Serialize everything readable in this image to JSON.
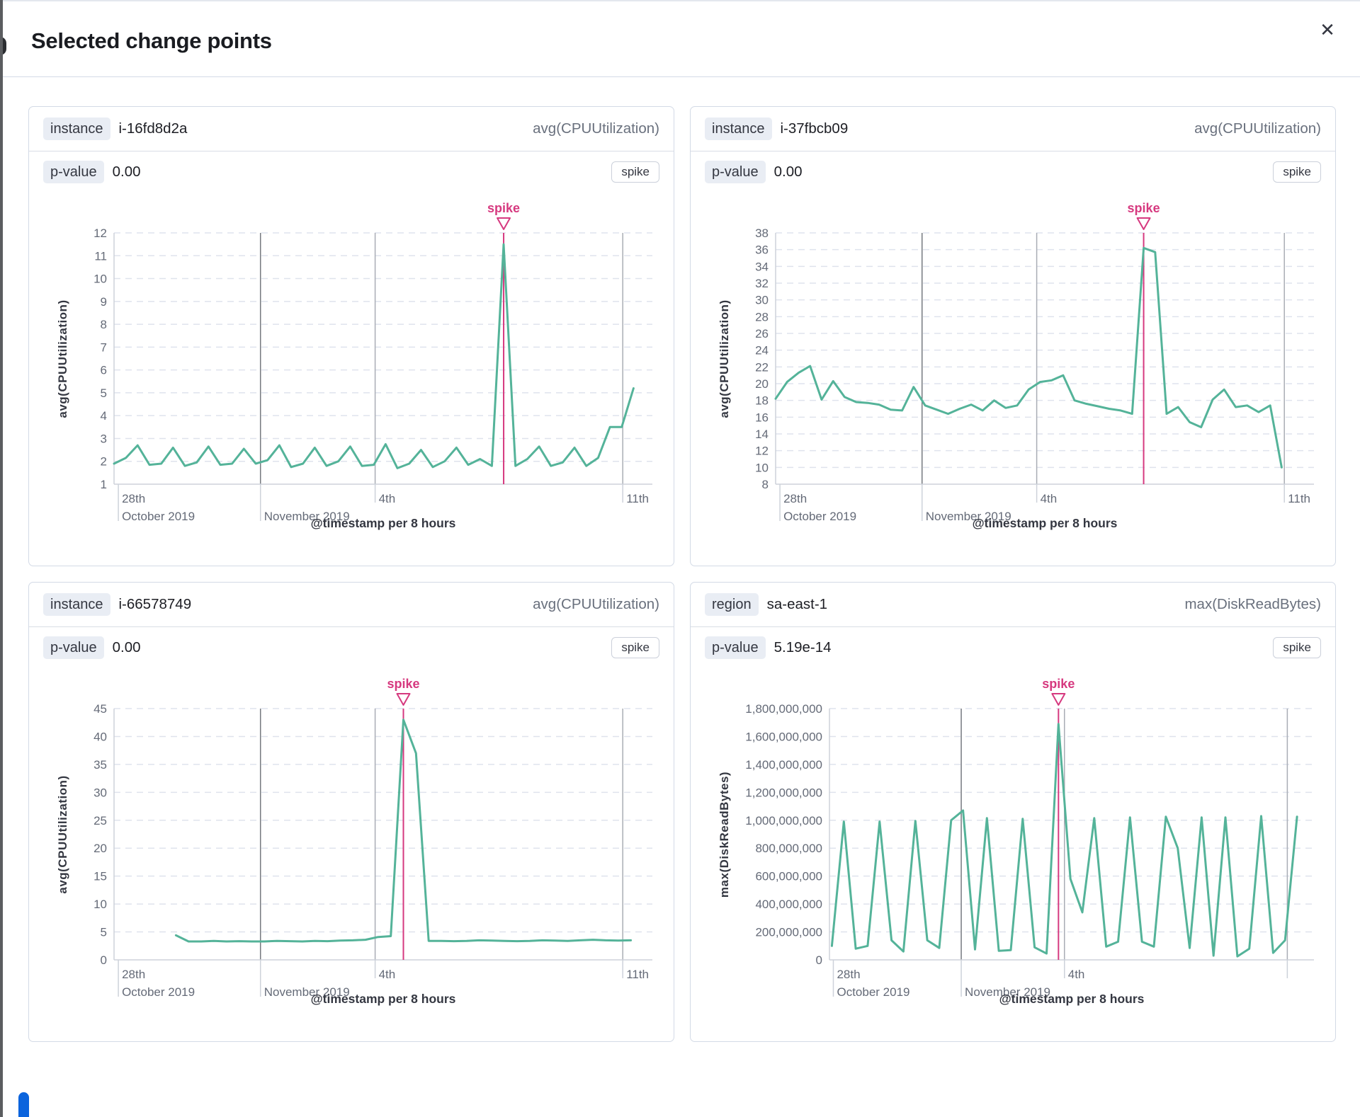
{
  "page": {
    "title": "Selected change points",
    "icons": {
      "close": "✕"
    }
  },
  "colors": {
    "line": "#54b399",
    "annotation": "#d6397f",
    "grid": "#dfe3ed",
    "axis": "#cdd2da",
    "tick_label": "#646a77",
    "month_line": "#75797f",
    "day_line": "#a9adb5",
    "axis_title": "#343741"
  },
  "cards": [
    {
      "field_label": "instance",
      "field_value": "i-16fd8d2a",
      "metric": "avg(CPUUtilization)",
      "pvalue_label": "p-value",
      "pvalue_value": "0.00",
      "type_badge": "spike"
    },
    {
      "field_label": "instance",
      "field_value": "i-37fbcb09",
      "metric": "avg(CPUUtilization)",
      "pvalue_label": "p-value",
      "pvalue_value": "0.00",
      "type_badge": "spike"
    },
    {
      "field_label": "instance",
      "field_value": "i-66578749",
      "metric": "avg(CPUUtilization)",
      "pvalue_label": "p-value",
      "pvalue_value": "0.00",
      "type_badge": "spike"
    },
    {
      "field_label": "region",
      "field_value": "sa-east-1",
      "metric": "max(DiskReadBytes)",
      "pvalue_label": "p-value",
      "pvalue_value": "5.19e-14",
      "type_badge": "spike"
    }
  ],
  "chart_data": [
    {
      "type": "line",
      "ylabel": "avg(CPUUtilization)",
      "xlabel": "@timestamp per 8 hours",
      "annotation_label": "spike",
      "ylim": [
        1,
        12
      ],
      "y_tick_vals": [
        1,
        2,
        3,
        4,
        5,
        6,
        7,
        8,
        9,
        10,
        11,
        12
      ],
      "y_tick_labels": [
        "1",
        "2",
        "3",
        "4",
        "5",
        "6",
        "7",
        "8",
        "9",
        "10",
        "11",
        "12"
      ],
      "x_ticks": [
        {
          "pos": 0.008,
          "top": "28th",
          "bottom": "October 2019",
          "line": false,
          "strong": false
        },
        {
          "pos": 0.272,
          "top": "",
          "bottom": "November 2019",
          "line": true,
          "strong": true
        },
        {
          "pos": 0.485,
          "top": "4th",
          "bottom": "",
          "line": true,
          "strong": false
        },
        {
          "pos": 0.945,
          "top": "11th",
          "bottom": "",
          "line": true,
          "strong": false
        }
      ],
      "x_range": [
        0.0,
        0.965
      ],
      "values": [
        1.9,
        2.15,
        2.7,
        1.85,
        1.9,
        2.6,
        1.8,
        1.95,
        2.65,
        1.85,
        1.9,
        2.55,
        1.9,
        2.05,
        2.7,
        1.75,
        1.9,
        2.6,
        1.8,
        2.0,
        2.65,
        1.8,
        1.85,
        2.75,
        1.7,
        1.9,
        2.5,
        1.75,
        2.0,
        2.6,
        1.85,
        2.1,
        1.8,
        11.5,
        1.8,
        2.1,
        2.65,
        1.8,
        1.95,
        2.6,
        1.8,
        2.15,
        3.5,
        3.5,
        5.2
      ],
      "spike_index": 33,
      "y_gutter": 64
    },
    {
      "type": "line",
      "ylabel": "avg(CPUUtilization)",
      "xlabel": "@timestamp per 8 hours",
      "annotation_label": "spike",
      "ylim": [
        8,
        38
      ],
      "y_tick_vals": [
        8,
        10,
        12,
        14,
        16,
        18,
        20,
        22,
        24,
        26,
        28,
        30,
        32,
        34,
        36,
        38
      ],
      "y_tick_labels": [
        "8",
        "10",
        "12",
        "14",
        "16",
        "18",
        "20",
        "22",
        "24",
        "26",
        "28",
        "30",
        "32",
        "34",
        "36",
        "38"
      ],
      "x_ticks": [
        {
          "pos": 0.008,
          "top": "28th",
          "bottom": "October 2019",
          "line": false,
          "strong": false
        },
        {
          "pos": 0.272,
          "top": "",
          "bottom": "November 2019",
          "line": true,
          "strong": true
        },
        {
          "pos": 0.485,
          "top": "4th",
          "bottom": "",
          "line": true,
          "strong": false
        },
        {
          "pos": 0.945,
          "top": "11th",
          "bottom": "",
          "line": true,
          "strong": false
        }
      ],
      "x_range": [
        0.0,
        0.94
      ],
      "values": [
        18.2,
        20.2,
        21.3,
        22.1,
        18.1,
        20.3,
        18.4,
        17.8,
        17.7,
        17.5,
        16.9,
        16.8,
        19.6,
        17.4,
        16.9,
        16.4,
        17.0,
        17.5,
        16.8,
        18.0,
        17.1,
        17.4,
        19.3,
        20.2,
        20.4,
        21.0,
        18.0,
        17.6,
        17.3,
        17.0,
        16.8,
        16.4,
        36.2,
        35.7,
        16.4,
        17.2,
        15.4,
        14.8,
        18.1,
        19.3,
        17.2,
        17.4,
        16.6,
        17.4,
        10.0
      ],
      "spike_index": 32,
      "y_gutter": 64
    },
    {
      "type": "line",
      "ylabel": "avg(CPUUtilization)",
      "xlabel": "@timestamp per 8 hours",
      "annotation_label": "spike",
      "ylim": [
        0,
        45
      ],
      "y_tick_vals": [
        0,
        5,
        10,
        15,
        20,
        25,
        30,
        35,
        40,
        45
      ],
      "y_tick_labels": [
        "0",
        "5",
        "10",
        "15",
        "20",
        "25",
        "30",
        "35",
        "40",
        "45"
      ],
      "x_ticks": [
        {
          "pos": 0.008,
          "top": "28th",
          "bottom": "October 2019",
          "line": false,
          "strong": false
        },
        {
          "pos": 0.272,
          "top": "",
          "bottom": "November 2019",
          "line": true,
          "strong": true
        },
        {
          "pos": 0.485,
          "top": "4th",
          "bottom": "",
          "line": true,
          "strong": false
        },
        {
          "pos": 0.945,
          "top": "11th",
          "bottom": "",
          "line": true,
          "strong": false
        }
      ],
      "x_range": [
        0.115,
        0.96
      ],
      "values": [
        4.4,
        3.3,
        3.3,
        3.4,
        3.3,
        3.35,
        3.3,
        3.3,
        3.4,
        3.35,
        3.3,
        3.4,
        3.35,
        3.45,
        3.5,
        3.6,
        4.1,
        4.25,
        43.0,
        37.0,
        3.4,
        3.4,
        3.35,
        3.4,
        3.5,
        3.45,
        3.4,
        3.35,
        3.4,
        3.5,
        3.45,
        3.4,
        3.5,
        3.6,
        3.5,
        3.45,
        3.5
      ],
      "spike_index": 18,
      "y_gutter": 64
    },
    {
      "type": "line",
      "ylabel": "max(DiskReadBytes)",
      "xlabel": "@timestamp per 8 hours",
      "annotation_label": "spike",
      "ylim": [
        0,
        1800000000
      ],
      "y_tick_vals": [
        0,
        200000000,
        400000000,
        600000000,
        800000000,
        1000000000,
        1200000000,
        1400000000,
        1600000000,
        1800000000
      ],
      "y_tick_labels": [
        "0",
        "200,000,000",
        "400,000,000",
        "600,000,000",
        "800,000,000",
        "1,000,000,000",
        "1,200,000,000",
        "1,400,000,000",
        "1,600,000,000",
        "1,800,000,000"
      ],
      "x_ticks": [
        {
          "pos": 0.008,
          "top": "28th",
          "bottom": "October 2019",
          "line": false,
          "strong": false
        },
        {
          "pos": 0.272,
          "top": "",
          "bottom": "November 2019",
          "line": true,
          "strong": true
        },
        {
          "pos": 0.485,
          "top": "4th",
          "bottom": "",
          "line": true,
          "strong": false
        },
        {
          "pos": 0.945,
          "top": "",
          "bottom": "",
          "line": true,
          "strong": false
        }
      ],
      "x_range": [
        0.005,
        0.965
      ],
      "values": [
        100000000,
        990000000,
        80000000,
        100000000,
        990000000,
        140000000,
        60000000,
        995000000,
        140000000,
        85000000,
        1000000000,
        1070000000,
        75000000,
        1015000000,
        65000000,
        70000000,
        1010000000,
        90000000,
        45000000,
        1690000000,
        580000000,
        340000000,
        1015000000,
        95000000,
        130000000,
        1020000000,
        130000000,
        95000000,
        1025000000,
        800000000,
        85000000,
        1020000000,
        30000000,
        1020000000,
        25000000,
        80000000,
        1030000000,
        50000000,
        140000000,
        1025000000
      ],
      "spike_index": 19,
      "y_gutter": 140
    }
  ]
}
